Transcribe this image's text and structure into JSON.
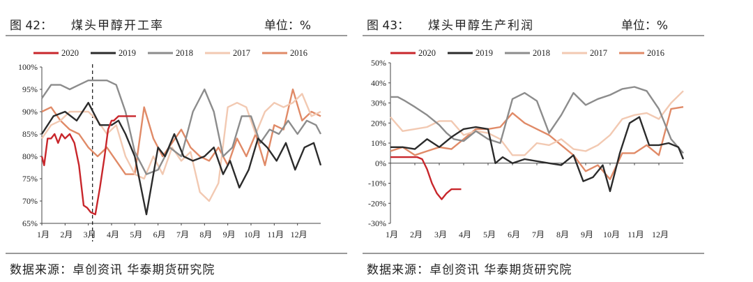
{
  "panels": [
    {
      "figure_no": "图 42：",
      "title": "煤头甲醇开工率",
      "unit": "单位：%",
      "source": "数据来源：卓创资讯 华泰期货研究院"
    },
    {
      "figure_no": "图 43：",
      "title": "煤头甲醇生产利润",
      "unit": "单位：%",
      "source": "数据来源：卓创资讯 华泰期货研究院"
    }
  ],
  "colors": {
    "2020": "#c8262b",
    "2019": "#2b2b2b",
    "2018": "#8c8c8c",
    "2017": "#f2c9b2",
    "2016": "#e08a67"
  },
  "chart_data": [
    {
      "type": "line",
      "title": "煤头甲醇开工率",
      "categories": [
        "1月",
        "2月",
        "3月",
        "4月",
        "5月",
        "6月",
        "7月",
        "8月",
        "9月",
        "10月",
        "11月",
        "12月"
      ],
      "ylim": [
        0.65,
        1.0
      ],
      "yticks": [
        "100%",
        "95%",
        "90%",
        "85%",
        "80%",
        "75%",
        "70%",
        "65%"
      ],
      "legend_position": "top",
      "grid": false,
      "annotation": "dashed vertical line at 3月",
      "series": [
        {
          "name": "2020",
          "x": [
            0,
            0.1,
            0.25,
            0.4,
            0.55,
            0.7,
            0.85,
            1.0,
            1.2,
            1.4,
            1.6,
            1.8,
            1.95,
            2.1,
            2.3,
            2.5,
            2.7,
            2.85,
            3.0,
            3.1,
            3.3,
            3.5,
            3.7,
            3.9,
            4.05
          ],
          "values": [
            0.8,
            0.78,
            0.84,
            0.84,
            0.85,
            0.83,
            0.85,
            0.84,
            0.85,
            0.83,
            0.78,
            0.69,
            0.685,
            0.675,
            0.67,
            0.73,
            0.8,
            0.86,
            0.88,
            0.88,
            0.89,
            0.89,
            0.89,
            0.89,
            0.89
          ]
        },
        {
          "name": "2019",
          "x": [
            0,
            0.5,
            1.0,
            1.5,
            2.0,
            2.5,
            3.0,
            3.3,
            3.6,
            4.0,
            4.5,
            5.0,
            5.3,
            5.7,
            6.1,
            6.5,
            7.0,
            7.4,
            7.8,
            8.1,
            8.5,
            8.9,
            9.3,
            9.7,
            10.1,
            10.5,
            10.9,
            11.3,
            11.7,
            12.0
          ],
          "values": [
            0.85,
            0.89,
            0.9,
            0.88,
            0.92,
            0.87,
            0.87,
            0.88,
            0.85,
            0.8,
            0.67,
            0.82,
            0.8,
            0.85,
            0.8,
            0.79,
            0.8,
            0.82,
            0.76,
            0.79,
            0.73,
            0.77,
            0.84,
            0.82,
            0.79,
            0.83,
            0.77,
            0.82,
            0.83,
            0.78
          ]
        },
        {
          "name": "2018",
          "x": [
            0,
            0.4,
            0.8,
            1.2,
            1.6,
            2.0,
            2.4,
            2.8,
            3.2,
            3.6,
            4.0,
            4.5,
            5.0,
            5.5,
            6.0,
            6.5,
            7.0,
            7.4,
            7.8,
            8.2,
            8.6,
            9.0,
            9.4,
            9.8,
            10.2,
            10.6,
            11.0,
            11.4,
            11.8,
            12.0
          ],
          "values": [
            0.93,
            0.96,
            0.96,
            0.95,
            0.96,
            0.97,
            0.97,
            0.97,
            0.96,
            0.9,
            0.81,
            0.76,
            0.77,
            0.82,
            0.8,
            0.9,
            0.95,
            0.9,
            0.8,
            0.82,
            0.89,
            0.89,
            0.83,
            0.86,
            0.85,
            0.88,
            0.85,
            0.88,
            0.87,
            0.85
          ]
        },
        {
          "name": "2017",
          "x": [
            0,
            0.4,
            0.8,
            1.2,
            1.6,
            2.0,
            2.4,
            2.8,
            3.2,
            3.6,
            4.0,
            4.4,
            4.8,
            5.2,
            5.6,
            6.0,
            6.4,
            6.8,
            7.2,
            7.6,
            8.0,
            8.4,
            8.8,
            9.2,
            9.6,
            10.0,
            10.4,
            10.8,
            11.2,
            11.6,
            12.0
          ],
          "values": [
            0.84,
            0.87,
            0.88,
            0.9,
            0.9,
            0.9,
            0.88,
            0.85,
            0.87,
            0.8,
            0.76,
            0.75,
            0.8,
            0.76,
            0.82,
            0.79,
            0.81,
            0.72,
            0.7,
            0.74,
            0.91,
            0.92,
            0.91,
            0.85,
            0.9,
            0.92,
            0.91,
            0.92,
            0.94,
            0.89,
            0.9
          ]
        },
        {
          "name": "2016",
          "x": [
            0,
            0.4,
            0.8,
            1.2,
            1.6,
            2.0,
            2.4,
            2.8,
            3.2,
            3.6,
            4.0,
            4.4,
            4.8,
            5.2,
            5.6,
            6.0,
            6.4,
            6.8,
            7.2,
            7.6,
            8.0,
            8.4,
            8.8,
            9.2,
            9.6,
            10.0,
            10.4,
            10.8,
            11.2,
            11.6,
            12.0
          ],
          "values": [
            0.9,
            0.91,
            0.88,
            0.86,
            0.85,
            0.82,
            0.8,
            0.82,
            0.79,
            0.76,
            0.76,
            0.91,
            0.84,
            0.8,
            0.83,
            0.86,
            0.82,
            0.8,
            0.79,
            0.82,
            0.78,
            0.84,
            0.8,
            0.85,
            0.78,
            0.87,
            0.86,
            0.95,
            0.88,
            0.9,
            0.89
          ]
        }
      ]
    },
    {
      "type": "line",
      "title": "煤头甲醇生产利润",
      "categories": [
        "1月",
        "2月",
        "3月",
        "4月",
        "5月",
        "6月",
        "7月",
        "8月",
        "9月",
        "10月",
        "11月",
        "12月"
      ],
      "ylim": [
        -0.3,
        0.5
      ],
      "yticks": [
        "50%",
        "40%",
        "30%",
        "20%",
        "10%",
        "0%",
        "-10%",
        "-20%",
        "-30%"
      ],
      "legend_position": "top",
      "grid": false,
      "series": [
        {
          "name": "2020",
          "x": [
            0,
            0.3,
            0.6,
            0.9,
            1.1,
            1.3,
            1.5,
            1.7,
            1.9,
            2.1,
            2.3,
            2.5,
            2.7,
            2.9
          ],
          "values": [
            0.03,
            0.03,
            0.03,
            0.03,
            0.03,
            0.02,
            -0.03,
            -0.1,
            -0.15,
            -0.18,
            -0.15,
            -0.13,
            -0.13,
            -0.13
          ]
        },
        {
          "name": "2019",
          "x": [
            0,
            0.5,
            1.0,
            1.5,
            2.0,
            2.5,
            3.0,
            3.5,
            4.0,
            4.3,
            4.6,
            5.0,
            5.5,
            6.0,
            6.5,
            7.0,
            7.5,
            7.9,
            8.3,
            8.7,
            9.0,
            9.4,
            9.8,
            10.2,
            10.6,
            11.0,
            11.4,
            11.8,
            12.0
          ],
          "values": [
            0.08,
            0.08,
            0.07,
            0.12,
            0.08,
            0.13,
            0.17,
            0.18,
            0.17,
            0.0,
            0.03,
            0.0,
            0.02,
            0.01,
            0.0,
            -0.01,
            0.04,
            -0.09,
            -0.07,
            -0.01,
            -0.14,
            0.05,
            0.2,
            0.23,
            0.09,
            0.09,
            0.1,
            0.08,
            0.02
          ]
        },
        {
          "name": "2018",
          "x": [
            0,
            0.3,
            0.6,
            1.0,
            1.5,
            2.0,
            2.3,
            2.6,
            3.0,
            3.5,
            4.0,
            4.5,
            5.0,
            5.5,
            6.0,
            6.5,
            7.0,
            7.5,
            8.0,
            8.5,
            9.0,
            9.5,
            10.0,
            10.5,
            11.0,
            11.5,
            12.0
          ],
          "values": [
            0.33,
            0.33,
            0.31,
            0.28,
            0.24,
            0.19,
            0.15,
            0.12,
            0.11,
            0.16,
            0.12,
            0.1,
            0.32,
            0.35,
            0.31,
            0.15,
            0.24,
            0.35,
            0.29,
            0.32,
            0.34,
            0.37,
            0.38,
            0.36,
            0.27,
            0.12,
            0.05
          ]
        },
        {
          "name": "2017",
          "x": [
            0,
            0.5,
            1.0,
            1.5,
            2.0,
            2.5,
            3.0,
            3.5,
            4.0,
            4.5,
            5.0,
            5.5,
            6.0,
            6.5,
            7.0,
            7.5,
            8.0,
            8.5,
            9.0,
            9.5,
            10.0,
            10.5,
            11.0,
            11.5,
            12.0
          ],
          "values": [
            0.23,
            0.16,
            0.17,
            0.18,
            0.21,
            0.21,
            0.14,
            0.16,
            0.15,
            0.12,
            0.04,
            0.04,
            0.1,
            0.09,
            0.12,
            0.07,
            0.06,
            0.09,
            0.14,
            0.22,
            0.24,
            0.25,
            0.22,
            0.3,
            0.36
          ]
        },
        {
          "name": "2016",
          "x": [
            0,
            0.5,
            1.0,
            1.5,
            2.0,
            2.5,
            3.0,
            3.5,
            4.0,
            4.5,
            5.0,
            5.5,
            6.0,
            6.5,
            7.0,
            7.5,
            8.0,
            8.5,
            9.0,
            9.5,
            10.0,
            10.5,
            11.0,
            11.5,
            12.0
          ],
          "values": [
            0.06,
            0.08,
            0.04,
            0.06,
            0.08,
            0.07,
            0.12,
            0.17,
            0.17,
            0.18,
            0.25,
            0.2,
            0.17,
            0.14,
            0.09,
            0.04,
            -0.04,
            -0.01,
            -0.08,
            0.05,
            0.05,
            0.09,
            0.04,
            0.27,
            0.28
          ]
        }
      ]
    }
  ]
}
